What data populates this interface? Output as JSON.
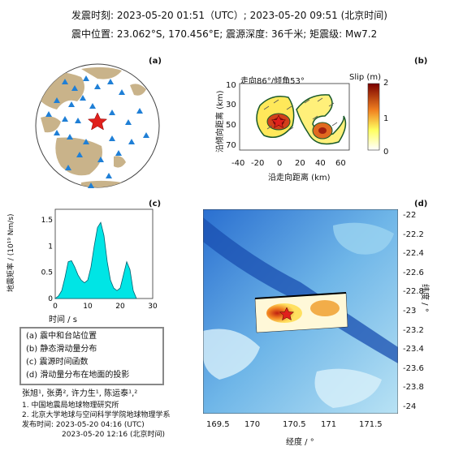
{
  "header": {
    "line1": "发震时刻: 2023-05-20 01:51（UTC）;   2023-05-20  09:51 (北京时间)",
    "line2": "震中位置: 23.062°S, 170.456°E;  震源深度: 36千米; 矩震级: Mw7.2"
  },
  "panels": {
    "a_label": "(a)",
    "b_label": "(b)",
    "c_label": "(c)",
    "d_label": "(d)"
  },
  "panel_b": {
    "title": "走向86°/倾角53°",
    "colorbar_title": "Slip (m)",
    "colorbar_ticks": [
      "2",
      "1",
      "0"
    ],
    "ylabel": "沿倾向距离 (km)",
    "xlabel": "沿走向距离 (km)",
    "yticks": [
      "10",
      "30",
      "50",
      "70"
    ],
    "xticks": [
      "-40",
      "-20",
      "0",
      "20",
      "40",
      "60"
    ]
  },
  "panel_c": {
    "ylabel": "地震矩率 / (10¹⁹ Nm/s)",
    "xlabel": "时间 / s",
    "yticks": [
      "0",
      "0.5",
      "1",
      "1.5"
    ],
    "xticks": [
      "0",
      "10",
      "20",
      "30"
    ]
  },
  "panel_d": {
    "ylabel": "纬度 / °",
    "xlabel": "经度 / °",
    "yticks": [
      "-22",
      "-22.2",
      "-22.4",
      "-22.6",
      "-22.8",
      "-23",
      "-23.2",
      "-23.4",
      "-23.6",
      "-23.8",
      "-24"
    ],
    "xticks": [
      "169.5",
      "170",
      "170.5",
      "171",
      "171.5"
    ]
  },
  "legend": [
    "(a) 震中和台站位置",
    "(b) 静态滑动量分布",
    "(c) 震源时间函数",
    "(d) 滑动量分布在地面的投影"
  ],
  "credits": {
    "authors": "张旭¹, 张勇², 许力生¹, 陈运泰¹,²",
    "aff1": "1. 中国地震局地球物理研究所",
    "aff2": "2. 北京大学地球与空间科学学院地球物理学系",
    "pub1": "发布时间:  2023-05-20  04:16 (UTC)",
    "pub2": "2023-05-20  12:16 (北京时间)"
  },
  "chart_data": {
    "type": "area",
    "x": [
      0,
      1,
      2,
      3,
      4,
      5,
      6,
      7,
      8,
      9,
      10,
      11,
      12,
      13,
      14,
      15,
      16,
      17,
      18,
      19,
      20,
      21,
      22,
      23,
      24,
      25
    ],
    "values": [
      0,
      0.05,
      0.15,
      0.4,
      0.7,
      0.72,
      0.6,
      0.45,
      0.35,
      0.3,
      0.35,
      0.6,
      1.0,
      1.35,
      1.45,
      1.2,
      0.7,
      0.35,
      0.2,
      0.15,
      0.2,
      0.45,
      0.7,
      0.55,
      0.15,
      0
    ],
    "xlim": [
      0,
      30
    ],
    "ylim": [
      0,
      1.7
    ],
    "xlabel": "时间 / s",
    "ylabel": "地震矩率 / (10¹⁹ Nm/s)",
    "color": "#00e5e5"
  }
}
